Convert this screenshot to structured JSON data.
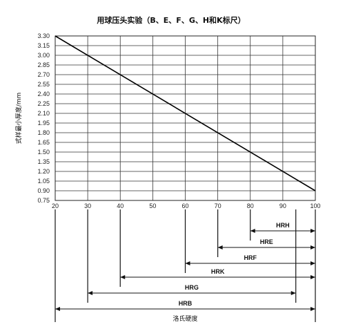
{
  "chart_data": {
    "type": "line",
    "title": "用球压头实验（B、E、F、G、H和K标尺）",
    "ylabel": "式样最小厚度/mm",
    "xlabel": "洛氏硬度",
    "xlim": [
      20,
      100
    ],
    "ylim": [
      0.75,
      3.3
    ],
    "grid": true,
    "x_ticks": [
      "20",
      "30",
      "40",
      "50",
      "60",
      "70",
      "80",
      "90",
      "100"
    ],
    "y_ticks": [
      "3.30",
      "3.15",
      "3.00",
      "2.85",
      "2.70",
      "2.55",
      "2.40",
      "2.25",
      "2.10",
      "1.95",
      "1.80",
      "1.65",
      "1.50",
      "1.35",
      "1.20",
      "1.05",
      "0.90",
      "0.75"
    ],
    "series": [
      {
        "x": [
          20,
          100
        ],
        "y": [
          3.3,
          0.9
        ]
      }
    ],
    "scale_ranges": [
      {
        "name": "HRH",
        "start": 80,
        "end": 100
      },
      {
        "name": "HRE",
        "start": 70,
        "end": 100
      },
      {
        "name": "HRF",
        "start": 60,
        "end": 100
      },
      {
        "name": "HRK",
        "start": 40,
        "end": 100
      },
      {
        "name": "HRG",
        "start": 30,
        "end": 94
      },
      {
        "name": "HRB",
        "start": 20,
        "end": 100
      }
    ]
  }
}
